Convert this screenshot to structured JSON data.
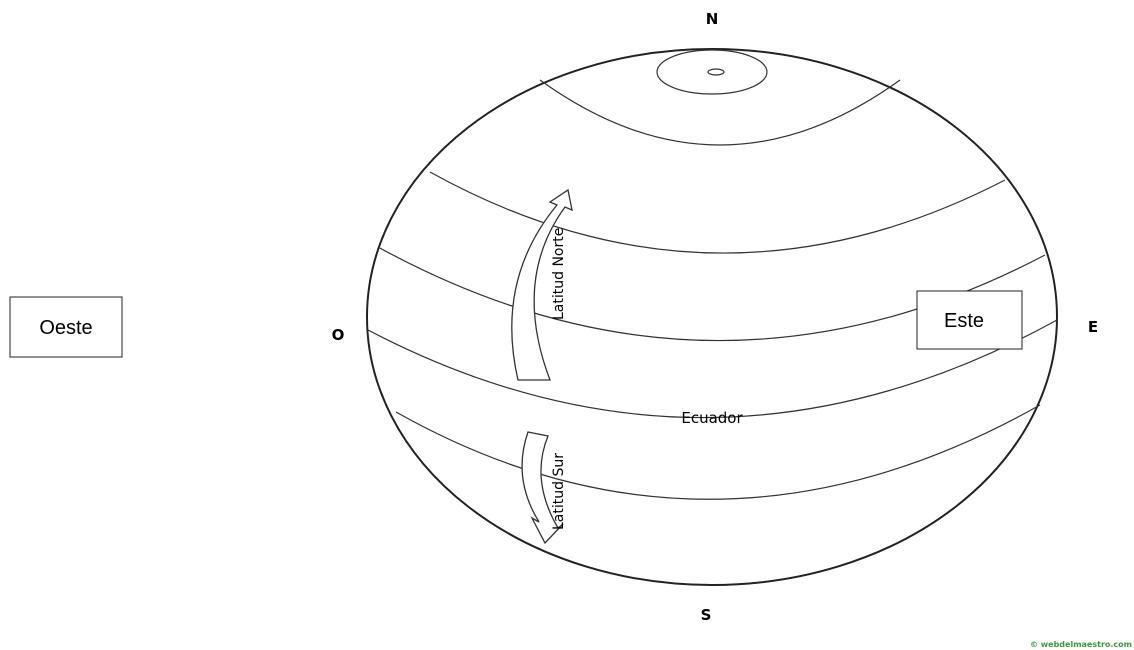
{
  "compass": {
    "north": "N",
    "south": "S",
    "west": "O",
    "east": "E"
  },
  "boxes": {
    "west": "Oeste",
    "east": "Este"
  },
  "labels": {
    "north_latitude": "Latitud Norte",
    "south_latitude": "Latitud Sur",
    "equator": "Ecuador"
  },
  "watermark": "© webdelmaestro.com"
}
